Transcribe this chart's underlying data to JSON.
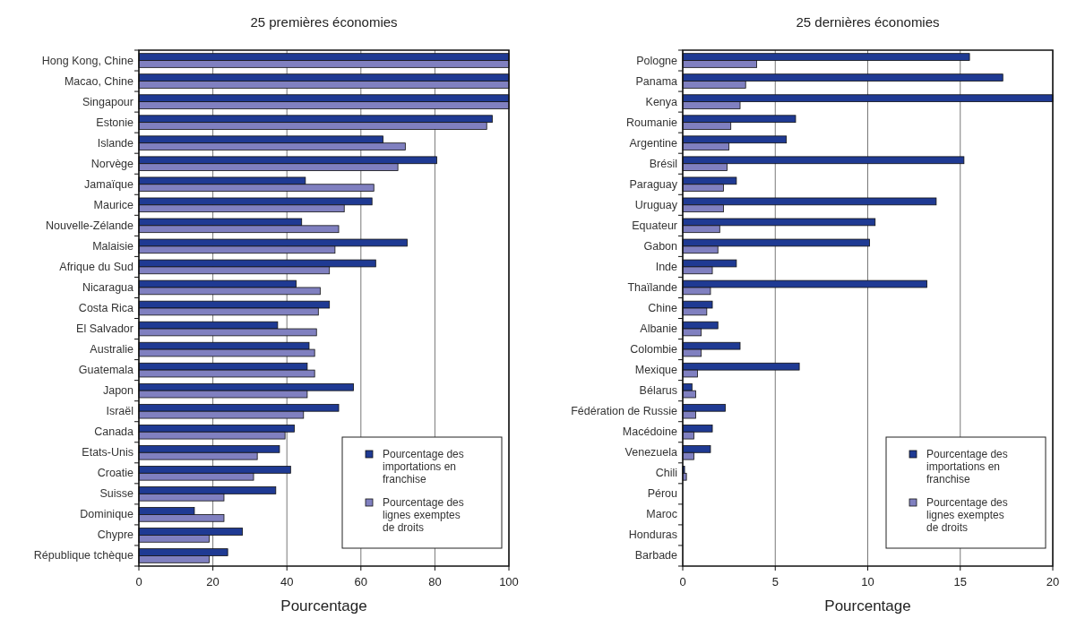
{
  "chart_data": [
    {
      "type": "bar",
      "orientation": "horizontal",
      "title": "25 premières économies",
      "xlabel": "Pourcentage",
      "categories": [
        "Hong Kong, Chine",
        "Macao, Chine",
        "Singapour",
        "Estonie",
        "Islande",
        "Norvège",
        "Jamaïque",
        "Maurice",
        "Nouvelle-Zélande",
        "Malaisie",
        "Afrique du Sud",
        "Nicaragua",
        "Costa Rica",
        "El Salvador",
        "Australie",
        "Guatemala",
        "Japon",
        "Israël",
        "Canada",
        "Etats-Unis",
        "Croatie",
        "Suisse",
        "Dominique",
        "Chypre",
        "République tchèque"
      ],
      "series": [
        {
          "name": "Pourcentage des importations en franchise",
          "color": "#1f3a93",
          "values": [
            100,
            100,
            100,
            95.5,
            66,
            80.5,
            45,
            63,
            44,
            72.5,
            64,
            42.5,
            51.5,
            37.5,
            46,
            45.5,
            58,
            54,
            42,
            38,
            41,
            37,
            15,
            28,
            24
          ]
        },
        {
          "name": "Pourcentage des lignes exemptes de droits",
          "color": "#8080c0",
          "values": [
            100,
            100,
            100,
            94,
            72,
            70,
            63.5,
            55.5,
            54,
            53,
            51.5,
            49,
            48.5,
            48,
            47.5,
            47.5,
            45.5,
            44.5,
            39.5,
            32,
            31,
            23,
            23,
            19,
            19
          ]
        }
      ],
      "xlim": [
        0,
        100
      ],
      "xticks": [
        0,
        20,
        40,
        60,
        80,
        100
      ],
      "grid": "x",
      "legend": "bottom right"
    },
    {
      "type": "bar",
      "orientation": "horizontal",
      "title": "25 dernières économies",
      "xlabel": "Pourcentage",
      "categories": [
        "Pologne",
        "Panama",
        "Kenya",
        "Roumanie",
        "Argentine",
        "Brésil",
        "Paraguay",
        "Uruguay",
        "Equateur",
        "Gabon",
        "Inde",
        "Thaïlande",
        "Chine",
        "Albanie",
        "Colombie",
        "Mexique",
        "Bélarus",
        "Fédération de Russie",
        "Macédoine",
        "Venezuela",
        "Chili",
        "Pérou",
        "Maroc",
        "Honduras",
        "Barbade"
      ],
      "series": [
        {
          "name": "Pourcentage des importations en franchise",
          "color": "#1f3a93",
          "values": [
            15.5,
            17.3,
            20,
            6.1,
            5.6,
            15.2,
            2.9,
            13.7,
            10.4,
            10.1,
            2.9,
            13.2,
            1.6,
            1.9,
            3.1,
            6.3,
            0.5,
            2.3,
            1.6,
            1.5,
            0.1,
            0,
            0,
            0,
            0
          ]
        },
        {
          "name": "Pourcentage des lignes exemptes de droits",
          "color": "#8080c0",
          "values": [
            4,
            3.4,
            3.1,
            2.6,
            2.5,
            2.4,
            2.2,
            2.2,
            2,
            1.9,
            1.6,
            1.5,
            1.3,
            1,
            1,
            0.8,
            0.7,
            0.7,
            0.6,
            0.6,
            0.2,
            0,
            0,
            0,
            0
          ]
        }
      ],
      "xlim": [
        0,
        20
      ],
      "xticks": [
        0,
        5,
        10,
        15,
        20
      ],
      "grid": "x",
      "legend": "bottom right"
    }
  ]
}
